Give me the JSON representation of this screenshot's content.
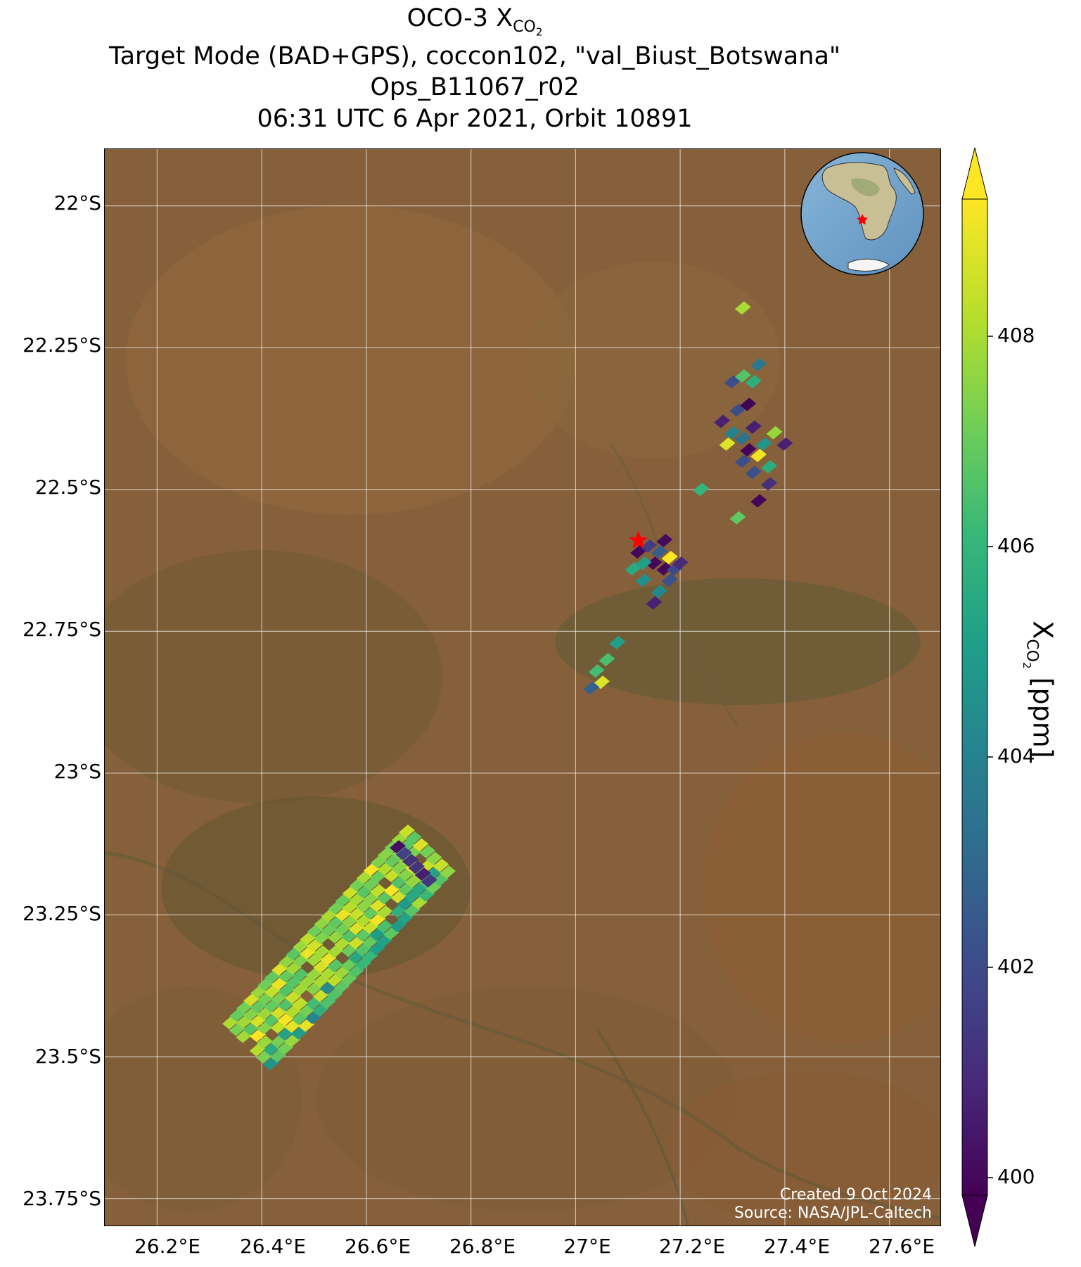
{
  "title": {
    "line1_prefix": "OCO-3 X",
    "line1_sub": "CO",
    "line1_subsub": "2",
    "line2": "Target Mode (BAD+GPS), coccon102, \"val_Biust_Botswana\"",
    "line3": "Ops_B11067_r02",
    "line4": "06:31 UTC 6 Apr 2021, Orbit 10891"
  },
  "map": {
    "lat_labels": [
      "22°S",
      "22.25°S",
      "22.5°S",
      "22.75°S",
      "23°S",
      "23.25°S",
      "23.5°S",
      "23.75°S"
    ],
    "lon_labels": [
      "26.2°E",
      "26.4°E",
      "26.6°E",
      "26.8°E",
      "27°E",
      "27.2°E",
      "27.4°E",
      "27.6°E"
    ],
    "lat_range": [
      -23.8,
      -21.9
    ],
    "lon_range": [
      26.1,
      27.7
    ],
    "target_marker": {
      "lon": 27.12,
      "lat": -22.59,
      "color": "#ff0000"
    },
    "credit_line1": "Created 9 Oct 2024",
    "credit_line2": "Source: NASA/JPL-Caltech"
  },
  "colorbar": {
    "tick_labels": [
      "400",
      "402",
      "404",
      "406",
      "408"
    ],
    "range": [
      399.8,
      409.3
    ],
    "label_prefix": "X",
    "label_sub": "CO",
    "label_subsub": "2",
    "label_suffix": " [ppm]",
    "colors": [
      "#440154",
      "#482878",
      "#3e4989",
      "#31688e",
      "#26828e",
      "#1f9e89",
      "#35b779",
      "#6ece58",
      "#b5de2b",
      "#fde725"
    ]
  }
}
